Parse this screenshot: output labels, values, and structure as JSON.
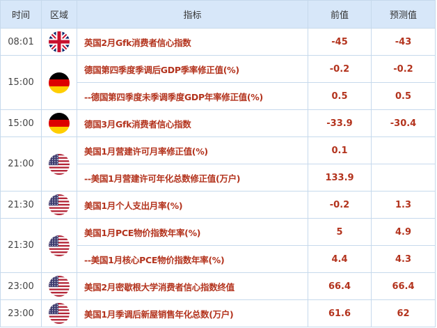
{
  "header": {
    "time": "时间",
    "region": "区域",
    "indicator": "指标",
    "previous": "前值",
    "forecast": "预测值"
  },
  "colors": {
    "header_bg": "#d7e7f9",
    "value_text": "#b3331d",
    "border": "#c6d9ec"
  },
  "groups": [
    {
      "time": "08:01",
      "flag": "uk-flag-icon",
      "items": [
        {
          "name": "英国2月Gfk消费者信心指数",
          "previous": "-45",
          "forecast": "-43"
        }
      ]
    },
    {
      "time": "15:00",
      "flag": "germany-flag-icon",
      "items": [
        {
          "name": "德国第四季度季调后GDP季率修正值(%)",
          "previous": "-0.2",
          "forecast": "-0.2"
        },
        {
          "name": "--德国第四季度未季调季度GDP年率修正值(%)",
          "previous": "0.5",
          "forecast": "0.5"
        }
      ]
    },
    {
      "time": "15:00",
      "flag": "germany-flag-icon",
      "items": [
        {
          "name": "德国3月Gfk消费者信心指数",
          "previous": "-33.9",
          "forecast": "-30.4"
        }
      ]
    },
    {
      "time": "21:00",
      "flag": "us-flag-icon",
      "items": [
        {
          "name": "美国1月营建许可月率修正值(%)",
          "previous": "0.1",
          "forecast": ""
        },
        {
          "name": "--美国1月营建许可年化总数修正值(万户)",
          "previous": "133.9",
          "forecast": ""
        }
      ]
    },
    {
      "time": "21:30",
      "flag": "us-flag-icon",
      "items": [
        {
          "name": "美国1月个人支出月率(%)",
          "previous": "-0.2",
          "forecast": "1.3"
        }
      ]
    },
    {
      "time": "21:30",
      "flag": "us-flag-icon",
      "items": [
        {
          "name": "美国1月PCE物价指数年率(%)",
          "previous": "5",
          "forecast": "4.9"
        },
        {
          "name": "--美国1月核心PCE物价指数年率(%)",
          "previous": "4.4",
          "forecast": "4.3"
        }
      ]
    },
    {
      "time": "23:00",
      "flag": "us-flag-icon",
      "items": [
        {
          "name": "美国2月密歇根大学消费者信心指数终值",
          "previous": "66.4",
          "forecast": "66.4"
        }
      ]
    },
    {
      "time": "23:00",
      "flag": "us-flag-icon",
      "items": [
        {
          "name": "美国1月季调后新屋销售年化总数(万户)",
          "previous": "61.6",
          "forecast": "62"
        }
      ]
    }
  ]
}
